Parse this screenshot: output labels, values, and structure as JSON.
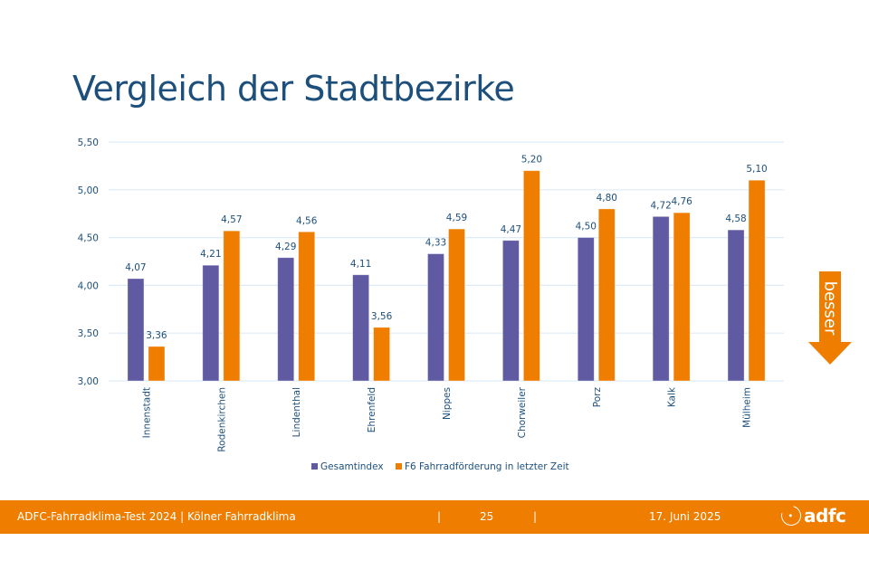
{
  "slide": {
    "title": "Vergleich der Stadtbezirke"
  },
  "indicator": {
    "label": "besser",
    "icon": "arrow-down-icon",
    "color": "#ef7d00"
  },
  "footer": {
    "left_text": "ADFC-Fahrradklima-Test 2024 | Kölner Fahrradklima",
    "separator": "|",
    "page_number": "25",
    "date": "17. Juni 2025",
    "logo_text": "adfc",
    "background": "#ef7d00"
  },
  "chart_data": {
    "type": "bar",
    "title": "",
    "xlabel": "",
    "ylabel": "",
    "ylim": [
      3.0,
      5.5
    ],
    "yticks": [
      3.0,
      3.5,
      4.0,
      4.5,
      5.0,
      5.5
    ],
    "ytick_labels": [
      "3,00",
      "3,50",
      "4,00",
      "4,50",
      "5,00",
      "5,50"
    ],
    "grid": true,
    "legend_position": "bottom",
    "categories": [
      "Innenstadt",
      "Rodenkirchen",
      "Lindenthal",
      "Ehrenfeld",
      "Nippes",
      "Chorweiler",
      "Porz",
      "Kalk",
      "Mülheim"
    ],
    "series": [
      {
        "name": "Gesamtindex",
        "color": "#5f5aa2",
        "values": [
          4.07,
          4.21,
          4.29,
          4.11,
          4.33,
          4.47,
          4.5,
          4.72,
          4.58
        ],
        "labels": [
          "4,07",
          "4,21",
          "4,29",
          "4,11",
          "4,33",
          "4,47",
          "4,50",
          "4,72",
          "4,58"
        ]
      },
      {
        "name": "F6 Fahrradförderung in letzter Zeit",
        "color": "#ef7d00",
        "values": [
          3.36,
          4.57,
          4.56,
          3.56,
          4.59,
          5.2,
          4.8,
          4.76,
          5.1
        ],
        "labels": [
          "3,36",
          "4,57",
          "4,56",
          "3,56",
          "4,59",
          "5,20",
          "4,80",
          "4,76",
          "5,10"
        ]
      }
    ]
  }
}
